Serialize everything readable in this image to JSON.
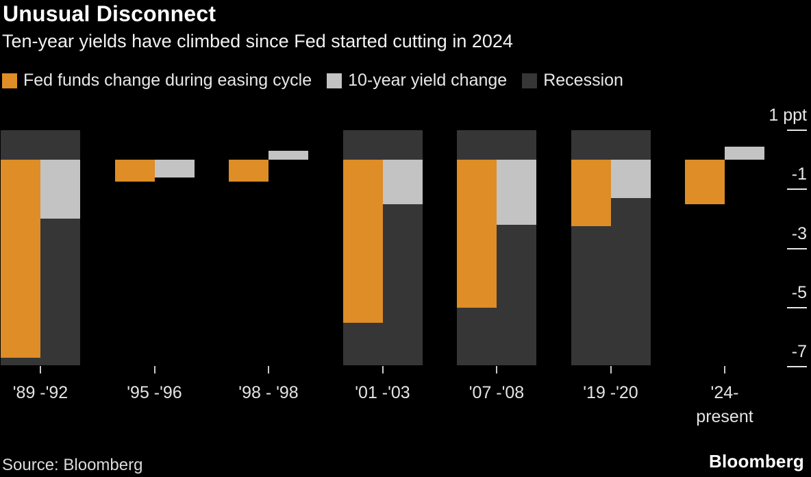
{
  "chart_data": {
    "type": "bar",
    "title": "Unusual Disconnect",
    "subtitle": "Ten-year yields have climbed since Fed started cutting in 2024",
    "unit_label": "1 ppt",
    "categories": [
      "'89 -'92",
      "'95 -'96",
      "'98 - '98",
      "'01 -'03",
      "'07 -'08",
      "'19 -'20",
      "'24-\npresent"
    ],
    "series": [
      {
        "name": "Fed funds change during easing cycle",
        "color": "#DE8D27",
        "values": [
          -6.7,
          -0.75,
          -0.75,
          -5.5,
          -5.0,
          -2.25,
          -1.5
        ]
      },
      {
        "name": "10-year yield change",
        "color": "#C3C3C3",
        "values": [
          -2.0,
          -0.6,
          0.3,
          -1.5,
          -2.2,
          -1.3,
          0.45
        ]
      }
    ],
    "recession_label": "Recession",
    "recession_color": "#363636",
    "recession": [
      true,
      false,
      false,
      true,
      true,
      true,
      false
    ],
    "yticks": [
      {
        "value": 1,
        "label": "1 ppt"
      },
      {
        "value": -1,
        "label": "-1"
      },
      {
        "value": -3,
        "label": "-3"
      },
      {
        "value": -5,
        "label": "-5"
      },
      {
        "value": -7,
        "label": "-7"
      }
    ],
    "ylim": [
      1,
      -7
    ],
    "axis_color": "#e8e8e8",
    "legend_position": "top",
    "grid": false,
    "source": "Source: Bloomberg",
    "logo": "Bloomberg"
  }
}
